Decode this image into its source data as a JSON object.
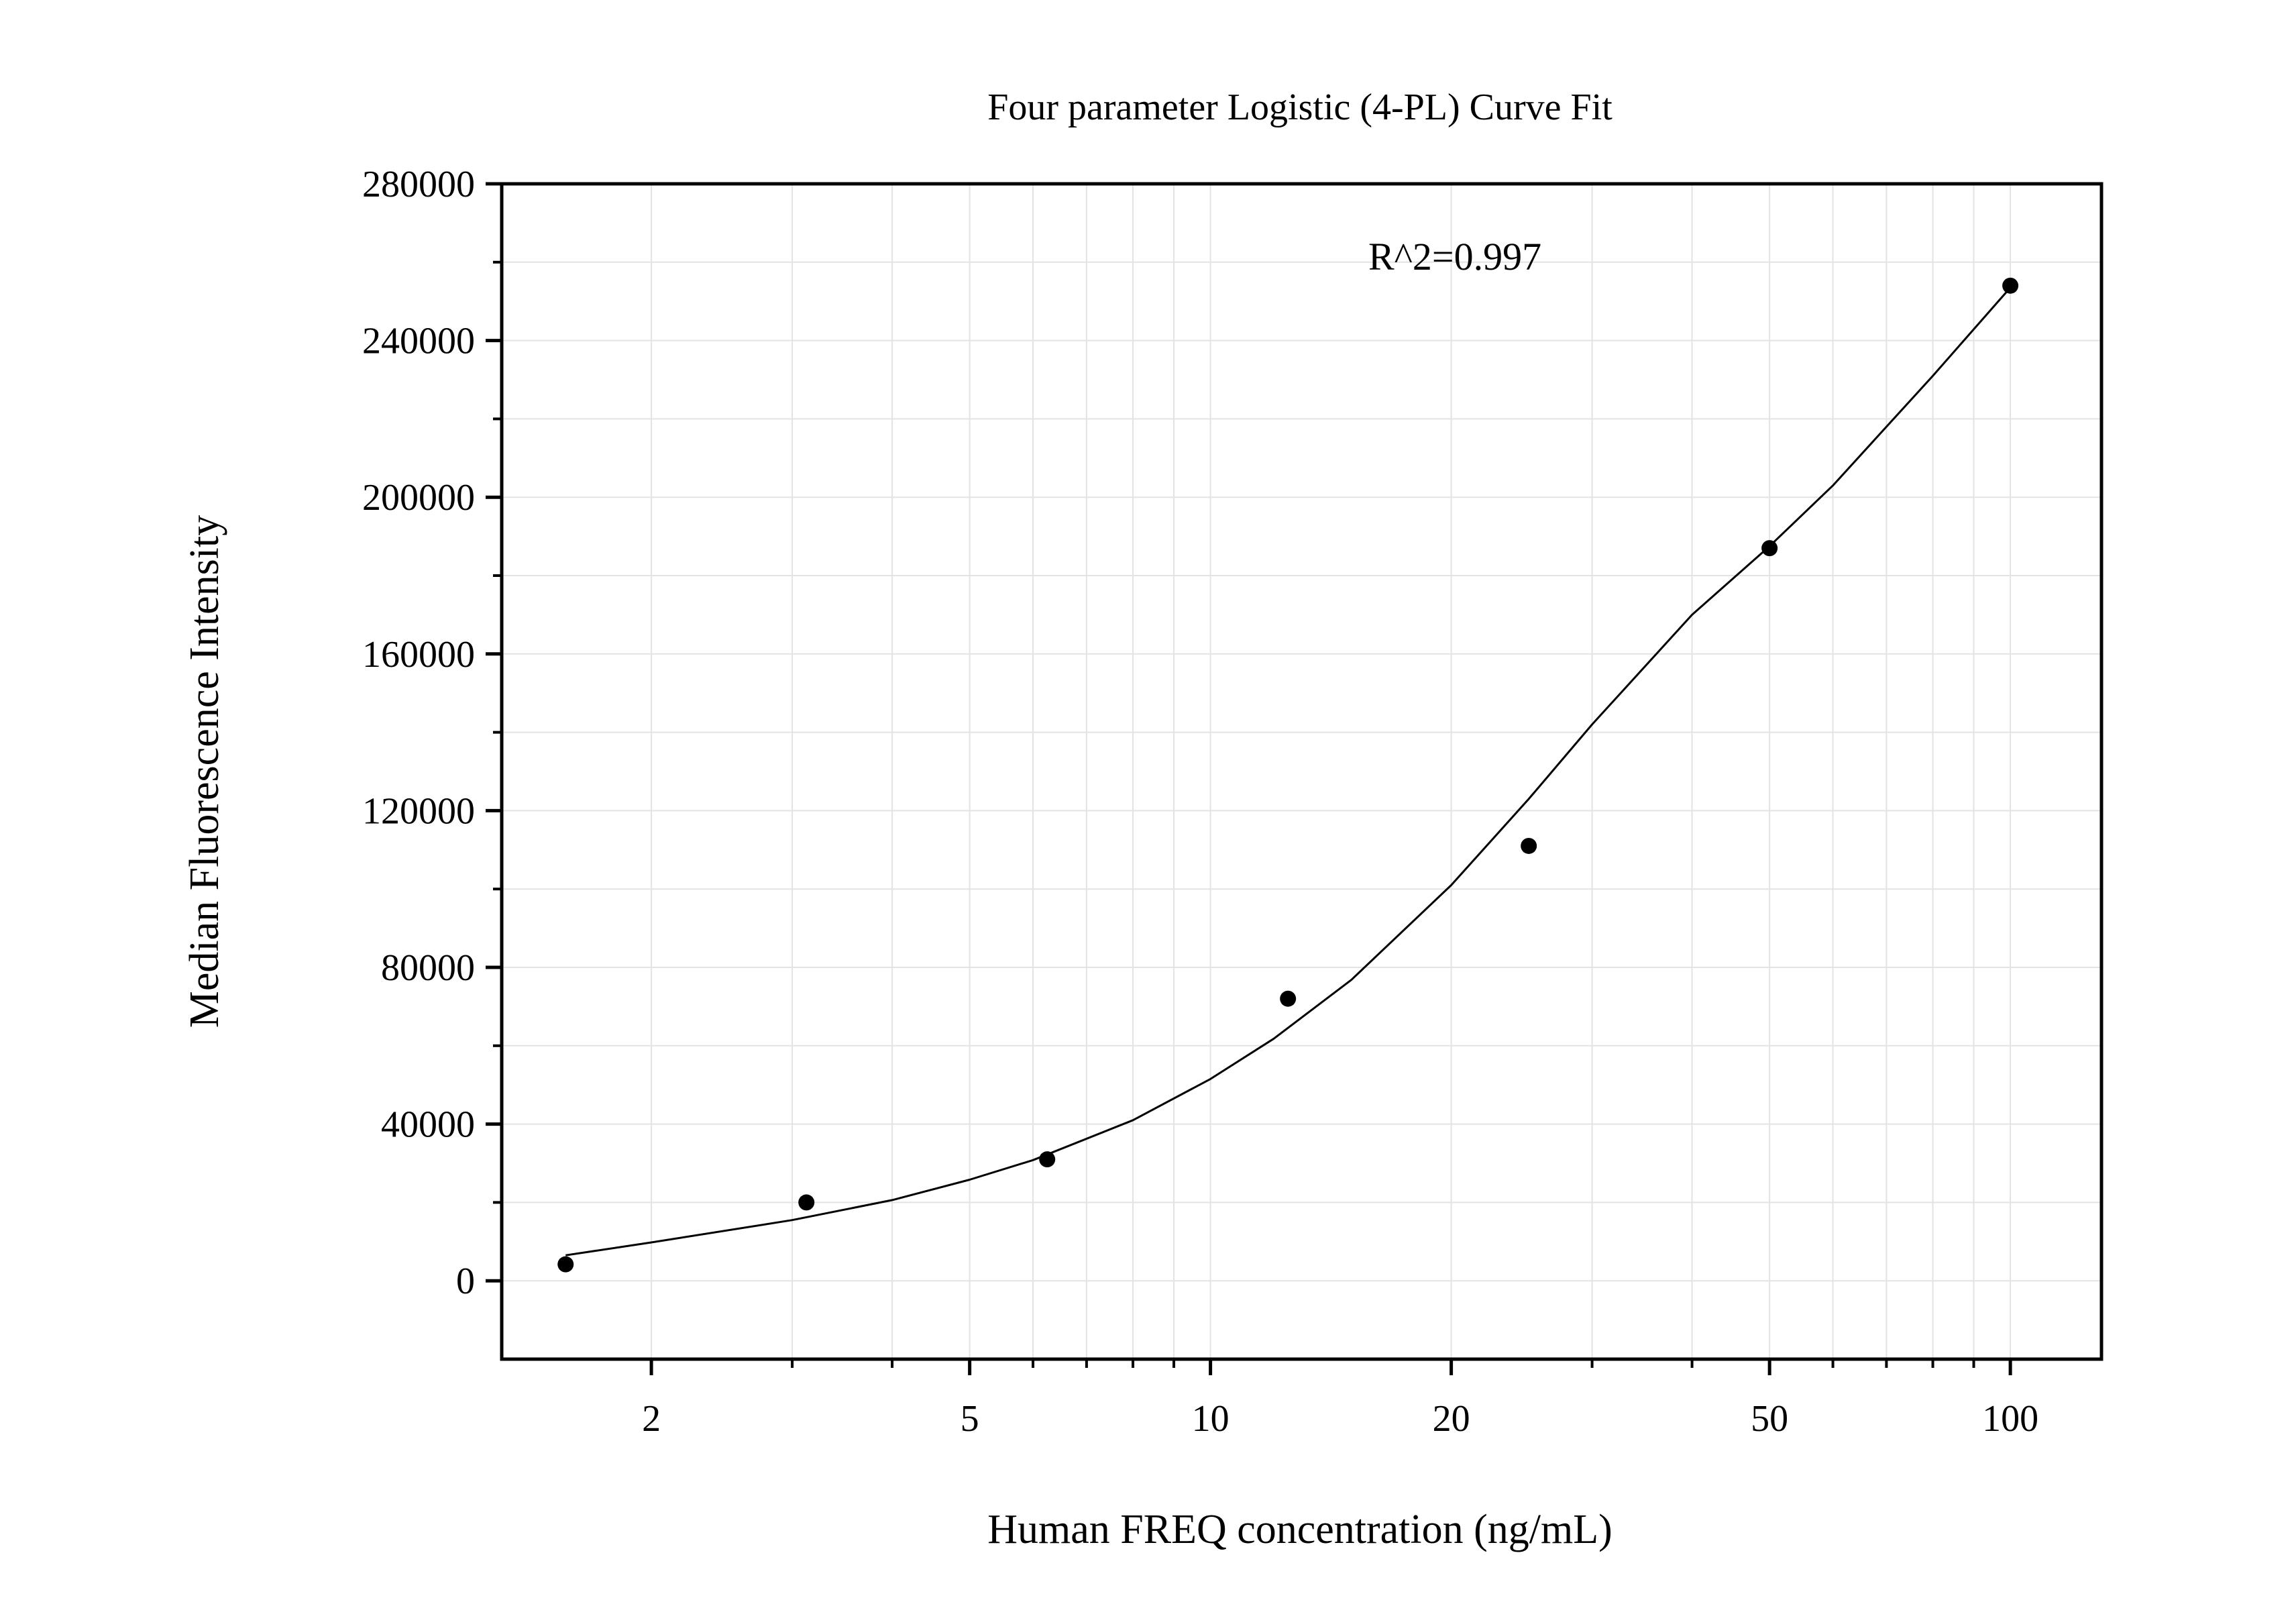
{
  "chart_data": {
    "type": "scatter",
    "title": "Four parameter Logistic (4-PL) Curve Fit",
    "xlabel": "Human FREQ concentration (ng/mL)",
    "ylabel": "Median Fluorescence Intensity",
    "x_scale": "log",
    "xlim": [
      1.3,
      130
    ],
    "ylim": [
      -20000,
      280000
    ],
    "x_ticks": [
      2,
      5,
      10,
      20,
      50,
      100
    ],
    "x_tick_labels": [
      "2",
      "5",
      "10",
      "20",
      "50",
      "100"
    ],
    "y_ticks": [
      0,
      40000,
      80000,
      120000,
      160000,
      200000,
      240000,
      280000
    ],
    "y_tick_labels": [
      "0",
      "40000",
      "80000",
      "120000",
      "160000",
      "200000",
      "240000",
      "280000"
    ],
    "grid": true,
    "annotation": "R^2=0.997",
    "points": {
      "x": [
        1.5625,
        3.125,
        6.25,
        12.5,
        25,
        50,
        100
      ],
      "y": [
        4200,
        20000,
        31000,
        72000,
        111000,
        187000,
        254000
      ]
    },
    "fit_curve": {
      "x": [
        1.5625,
        2,
        3,
        4,
        5,
        6,
        8,
        10,
        12,
        15,
        20,
        25,
        30,
        40,
        50,
        60,
        80,
        100
      ],
      "y": [
        6500,
        9800,
        15500,
        20600,
        25800,
        30800,
        41000,
        51500,
        61800,
        76800,
        101000,
        123000,
        142000,
        170000,
        187500,
        203000,
        231000,
        253500
      ]
    },
    "colors": {
      "points": "#000000",
      "curve": "#000000",
      "grid": "#e3e3e3",
      "axis": "#000000"
    }
  }
}
